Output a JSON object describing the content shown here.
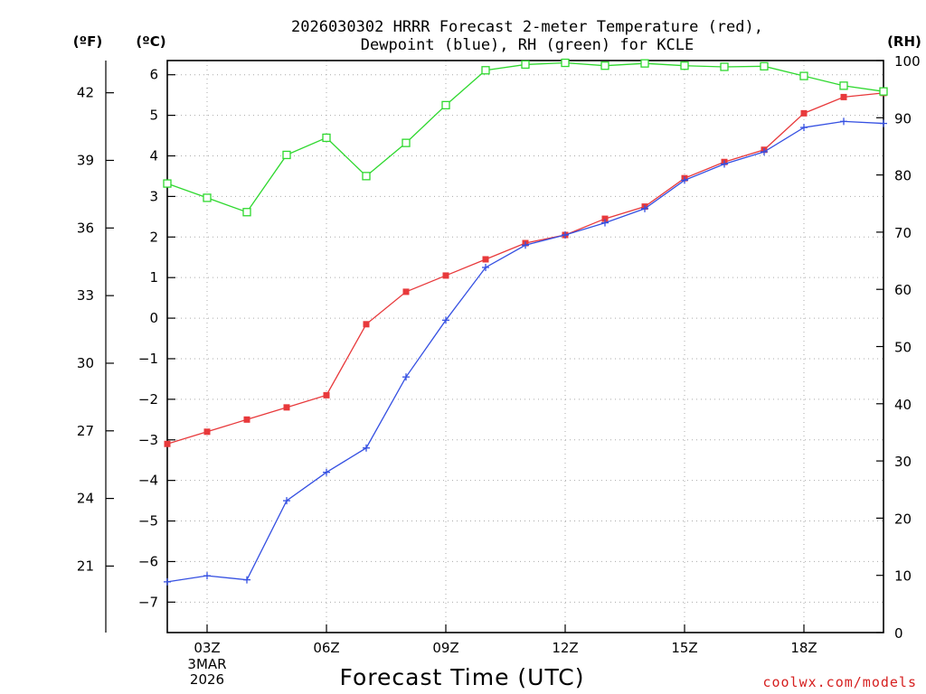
{
  "title_lines": [
    "2026030302 HRRR Forecast 2-meter Temperature (red),",
    "Dewpoint (blue), RH (green) for KCLE"
  ],
  "units": {
    "fahrenheit": "(ºF)",
    "celsius": "(ºC)",
    "rh": "(RH)"
  },
  "credit": "coolwx.com/models",
  "colors": {
    "temperature": "#e8393b",
    "dewpoint": "#3550e2",
    "rh": "#2ed82e",
    "credit": "#d62020"
  },
  "chart_data": {
    "type": "line",
    "title": "2026030302 HRRR Forecast 2-meter Temperature (red), Dewpoint (blue), RH (green) for KCLE",
    "xlabel": "Forecast Time (UTC)",
    "x_hours_since_02Z": [
      0,
      1,
      2,
      3,
      4,
      5,
      6,
      7,
      8,
      9,
      10,
      11,
      12,
      13,
      14,
      15,
      16,
      17,
      18
    ],
    "x_ticks": [
      {
        "hour": 1,
        "label": "03Z",
        "sub": [
          "3MAR",
          "2026"
        ]
      },
      {
        "hour": 4,
        "label": "06Z",
        "sub": []
      },
      {
        "hour": 7,
        "label": "09Z",
        "sub": []
      },
      {
        "hour": 10,
        "label": "12Z",
        "sub": []
      },
      {
        "hour": 13,
        "label": "15Z",
        "sub": []
      },
      {
        "hour": 16,
        "label": "18Z",
        "sub": []
      }
    ],
    "xlim": [
      0,
      18
    ],
    "left_axis_celsius": {
      "label": "(ºC)",
      "ylim": [
        -7.75,
        6.35
      ],
      "ticks": [
        -7,
        -6,
        -5,
        -4,
        -3,
        -2,
        -1,
        0,
        1,
        2,
        3,
        4,
        5,
        6
      ]
    },
    "left_axis_fahrenheit": {
      "label": "(ºF)",
      "ticks": [
        21,
        24,
        27,
        30,
        33,
        36,
        39,
        42
      ]
    },
    "right_axis_rh": {
      "label": "(RH)",
      "ylim": [
        0,
        100
      ],
      "ticks": [
        0,
        10,
        20,
        30,
        40,
        50,
        60,
        70,
        80,
        90,
        100
      ]
    },
    "series": [
      {
        "name": "2-meter Temperature (°C)",
        "axis": "celsius",
        "color": "red",
        "marker": "filled-square",
        "values": [
          -3.1,
          -2.8,
          -2.5,
          -2.2,
          -1.9,
          -0.15,
          0.65,
          1.05,
          1.45,
          1.85,
          2.05,
          2.45,
          2.75,
          3.45,
          3.85,
          4.15,
          5.05,
          5.45,
          5.55
        ]
      },
      {
        "name": "Dewpoint (°C)",
        "axis": "celsius",
        "color": "blue",
        "marker": "plus",
        "values": [
          -6.5,
          -6.35,
          -6.45,
          -4.5,
          -3.8,
          -3.2,
          -1.45,
          -0.05,
          1.25,
          1.8,
          2.05,
          2.35,
          2.7,
          3.4,
          3.8,
          4.1,
          4.7,
          4.85,
          4.8
        ]
      },
      {
        "name": "RH (%)",
        "axis": "rh",
        "color": "green",
        "marker": "open-square",
        "values": [
          78.5,
          76,
          73.5,
          83.5,
          86.5,
          79.8,
          85.6,
          92.2,
          98.3,
          99.3,
          99.6,
          99.1,
          99.5,
          99.1,
          98.9,
          99,
          97.3,
          95.6,
          94.6
        ]
      }
    ]
  }
}
